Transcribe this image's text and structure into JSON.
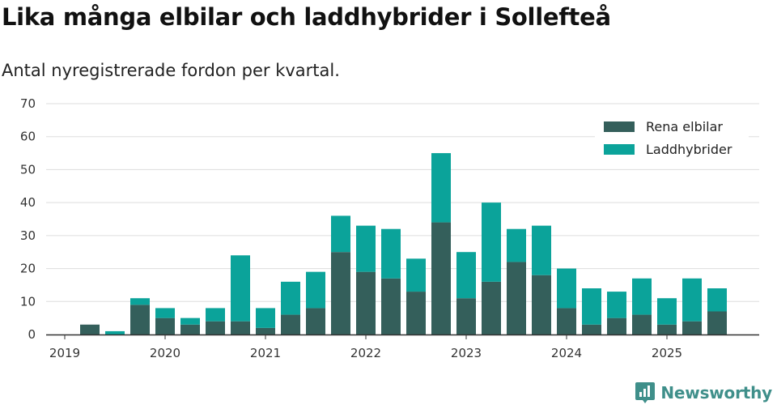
{
  "title": "Lika många elbilar och laddhybrider i Sollefteå",
  "subtitle": "Antal nyregistrerade fordon per kvartal.",
  "brand": {
    "name": "Newsworthy",
    "logo_icon": "newsworthy-logo-icon"
  },
  "colors": {
    "rena_elbilar": "#345f5b",
    "laddhybrider": "#0ba39a",
    "grid": "#dddddd",
    "axis": "#333333"
  },
  "chart_data": {
    "type": "bar",
    "stacked": true,
    "title": "Lika många elbilar och laddhybrider i Sollefteå",
    "subtitle": "Antal nyregistrerade fordon per kvartal.",
    "xlabel": "",
    "ylabel": "",
    "ylim": [
      0,
      70
    ],
    "yticks": [
      0,
      10,
      20,
      30,
      40,
      50,
      60,
      70
    ],
    "grid": true,
    "legend_position": "top-right",
    "x_tick_labels": [
      {
        "label": "2019",
        "index": 0
      },
      {
        "label": "2020",
        "index": 4
      },
      {
        "label": "2021",
        "index": 8
      },
      {
        "label": "2022",
        "index": 12
      },
      {
        "label": "2023",
        "index": 16
      },
      {
        "label": "2024",
        "index": 20
      },
      {
        "label": "2025",
        "index": 24
      }
    ],
    "categories": [
      "2019 Q1",
      "2019 Q2",
      "2019 Q3",
      "2019 Q4",
      "2020 Q1",
      "2020 Q2",
      "2020 Q3",
      "2020 Q4",
      "2021 Q1",
      "2021 Q2",
      "2021 Q3",
      "2021 Q4",
      "2022 Q1",
      "2022 Q2",
      "2022 Q3",
      "2022 Q4",
      "2023 Q1",
      "2023 Q2",
      "2023 Q3",
      "2023 Q4",
      "2024 Q1",
      "2024 Q2",
      "2024 Q3",
      "2024 Q4",
      "2025 Q1",
      "2025 Q2",
      "2025 Q3"
    ],
    "series": [
      {
        "name": "Rena elbilar",
        "color": "#345f5b",
        "values": [
          0,
          3,
          0,
          9,
          5,
          3,
          4,
          4,
          2,
          6,
          8,
          25,
          19,
          17,
          13,
          34,
          11,
          16,
          22,
          18,
          8,
          3,
          5,
          6,
          3,
          4,
          7
        ]
      },
      {
        "name": "Laddhybrider",
        "color": "#0ba39a",
        "values": [
          0,
          0,
          1,
          2,
          3,
          2,
          4,
          20,
          6,
          10,
          11,
          11,
          14,
          15,
          10,
          21,
          14,
          24,
          10,
          15,
          12,
          11,
          8,
          11,
          8,
          13,
          7
        ]
      }
    ]
  }
}
